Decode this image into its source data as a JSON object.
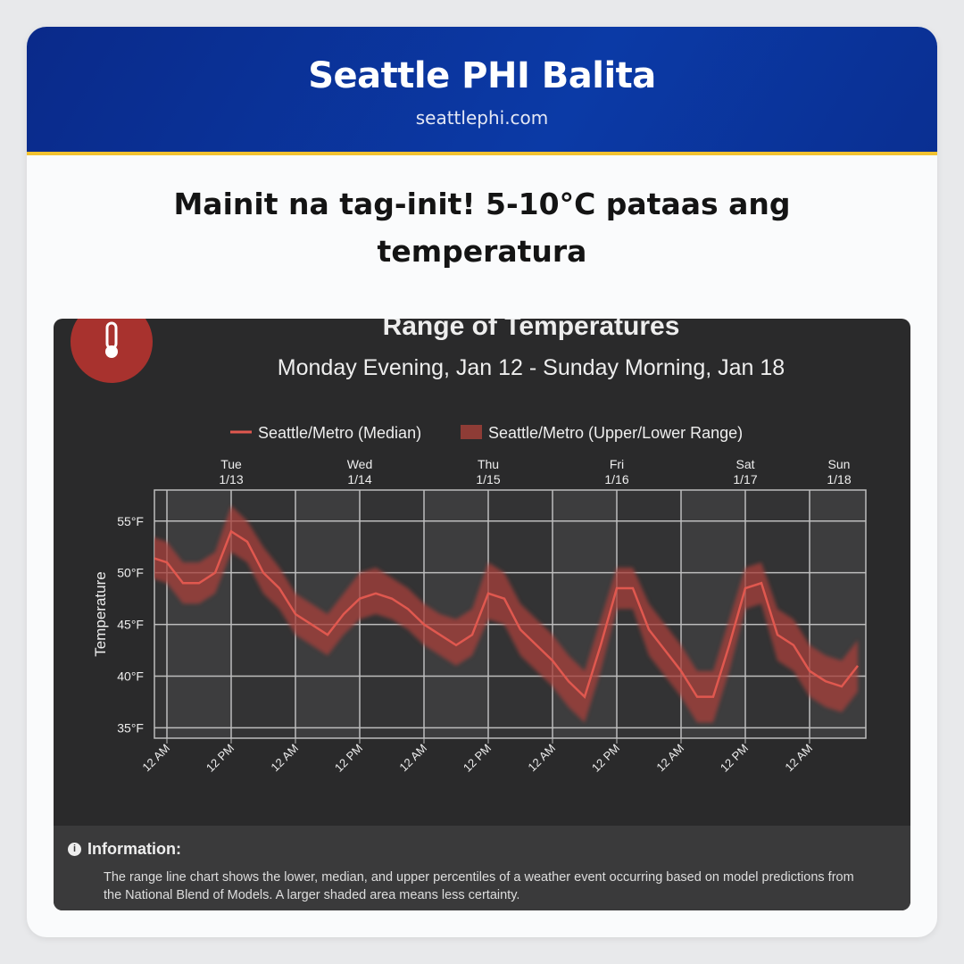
{
  "header": {
    "title": "Seattle PHI Balita",
    "site": "seattlephi.com"
  },
  "headline": "Mainit na tag-init! 5-10°C pataas ang temperatura",
  "chart_data": {
    "type": "line",
    "title": "Range of Temperatures",
    "subtitle": "Monday Evening, Jan 12 - Sunday Morning, Jan 18",
    "y_label": "Temperature",
    "categories": [
      null,
      "12 AM",
      null,
      null,
      null,
      "12 PM",
      null,
      null,
      null,
      "12 AM",
      null,
      null,
      null,
      "12 PM",
      null,
      null,
      null,
      "12 AM",
      null,
      null,
      null,
      "12 PM",
      null,
      null,
      null,
      "12 AM",
      null,
      null,
      null,
      "12 PM",
      null,
      null,
      null,
      "12 AM",
      null,
      null,
      null,
      "12 PM",
      null,
      null,
      null,
      "12 AM",
      null,
      null,
      null
    ],
    "day_labels": [
      {
        "day": "Tue",
        "date": "1/13"
      },
      {
        "day": "Wed",
        "date": "1/14"
      },
      {
        "day": "Thu",
        "date": "1/15"
      },
      {
        "day": "Fri",
        "date": "1/16"
      },
      {
        "day": "Sat",
        "date": "1/17"
      },
      {
        "day": "Sun",
        "date": "1/18"
      }
    ],
    "series": [
      {
        "name": "Seattle/Metro (Median)",
        "color": "#e0584f",
        "values": [
          51.5,
          51,
          49,
          49,
          50,
          54,
          53,
          50,
          48.5,
          46,
          45,
          44,
          46,
          47.5,
          48,
          47.5,
          46.5,
          45,
          44,
          43,
          44,
          48,
          47.5,
          44.5,
          43,
          41.5,
          39.5,
          38,
          43,
          48.5,
          48.5,
          44.5,
          42.5,
          40.5,
          38,
          38,
          43,
          48.5,
          49,
          44,
          43,
          40.5,
          39.5,
          39,
          41
        ]
      },
      {
        "name": "Seattle/Metro (Upper/Lower Range)",
        "color": "#a8413a",
        "upper": [
          53.5,
          53,
          51,
          51,
          52,
          56.5,
          55,
          52.5,
          50.5,
          48,
          47,
          46,
          48,
          50,
          50.5,
          49.5,
          48.5,
          47,
          46,
          45.5,
          46.5,
          51,
          50,
          47,
          45.5,
          44,
          42,
          40.5,
          45.5,
          50.5,
          50.5,
          47,
          45,
          43,
          40.5,
          40.5,
          45.5,
          50.5,
          51,
          46.5,
          45.5,
          43,
          42,
          41.5,
          43.5
        ],
        "lower": [
          49.5,
          49,
          47,
          47,
          48,
          52,
          51,
          48,
          46.5,
          44,
          43,
          42,
          44,
          45.5,
          46,
          45.5,
          44.5,
          43,
          42,
          41,
          42,
          45.5,
          45,
          42,
          40.5,
          39,
          37,
          35.5,
          40.5,
          46.5,
          46.5,
          42,
          40,
          38,
          35.5,
          35.5,
          40.5,
          46.5,
          47,
          41.5,
          40.5,
          38,
          37,
          36.5,
          38.5
        ]
      }
    ],
    "ylim": [
      34,
      58
    ],
    "yticks": [
      {
        "value": 35,
        "label": "35°F"
      },
      {
        "value": 40,
        "label": "40°F"
      },
      {
        "value": 45,
        "label": "45°F"
      },
      {
        "value": 50,
        "label": "50°F"
      },
      {
        "value": 55,
        "label": "55°F"
      }
    ],
    "grid": true
  },
  "info": {
    "title": "Information:",
    "text": "The range line chart shows the lower, median, and upper percentiles of a weather event occurring based on model predictions from the National Blend of Models. A larger shaded area means less certainty."
  }
}
